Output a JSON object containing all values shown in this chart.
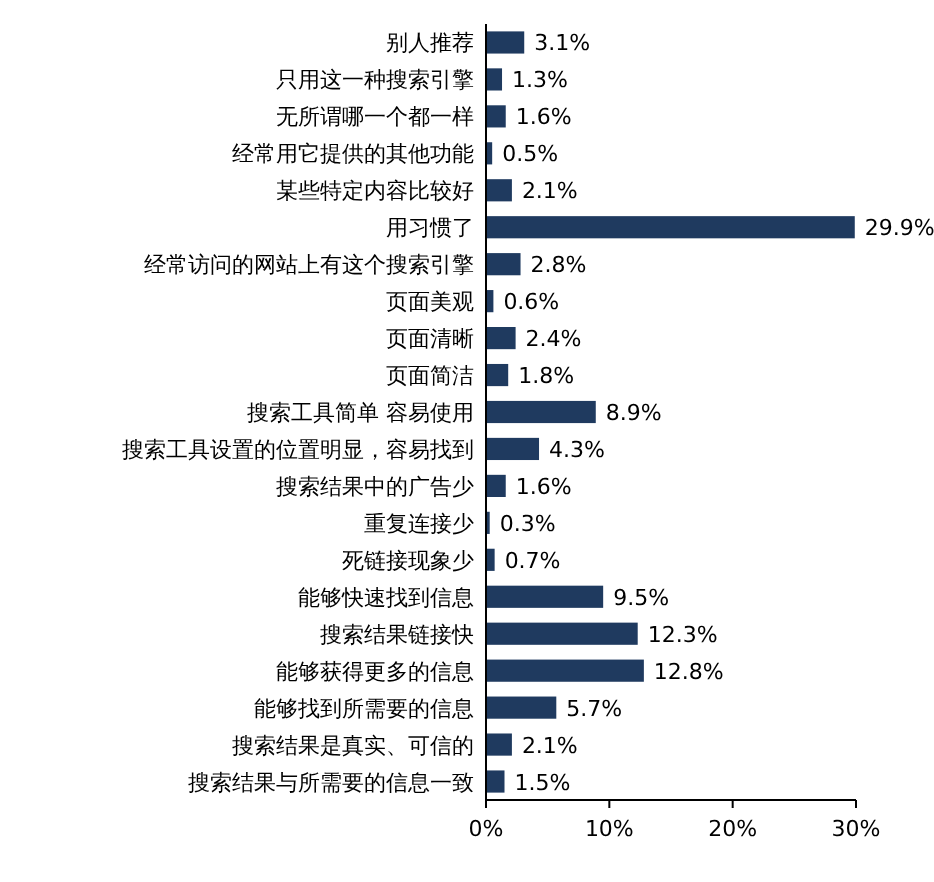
{
  "chart_data": {
    "type": "bar",
    "orientation": "horizontal",
    "categories": [
      "别人推荐",
      "只用这一种搜索引擎",
      "无所谓哪一个都一样",
      "经常用它提供的其他功能",
      "某些特定内容比较好",
      "用习惯了",
      "经常访问的网站上有这个搜索引擎",
      "页面美观",
      "页面清晰",
      "页面简洁",
      "搜索工具简单 容易使用",
      "搜索工具设置的位置明显，容易找到",
      "搜索结果中的广告少",
      "重复连接少",
      "死链接现象少",
      "能够快速找到信息",
      "搜索结果链接快",
      "能够获得更多的信息",
      "能够找到所需要的信息",
      "搜索结果是真实、可信的",
      "搜索结果与所需要的信息一致"
    ],
    "values": [
      3.1,
      1.3,
      1.6,
      0.5,
      2.1,
      29.9,
      2.8,
      0.6,
      2.4,
      1.8,
      8.9,
      4.3,
      1.6,
      0.3,
      0.7,
      9.5,
      12.3,
      12.8,
      5.7,
      2.1,
      1.5
    ],
    "value_labels": [
      "3.1%",
      "1.3%",
      "1.6%",
      "0.5%",
      "2.1%",
      "29.9%",
      "2.8%",
      "0.6%",
      "2.4%",
      "1.8%",
      "8.9%",
      "4.3%",
      "1.6%",
      "0.3%",
      "0.7%",
      "9.5%",
      "12.3%",
      "12.8%",
      "5.7%",
      "2.1%",
      "1.5%"
    ],
    "color": "#1f3a5f",
    "xlim": [
      0,
      30
    ],
    "xticks": [
      {
        "value": 0,
        "label": "0%"
      },
      {
        "value": 10,
        "label": "10%"
      },
      {
        "value": 20,
        "label": "20%"
      },
      {
        "value": 30,
        "label": "30%"
      }
    ],
    "grid": false
  }
}
